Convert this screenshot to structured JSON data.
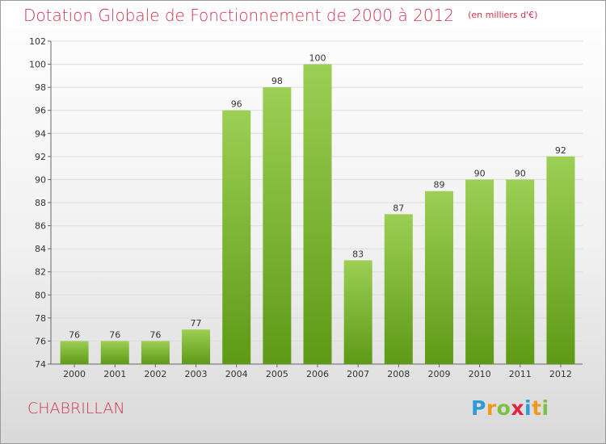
{
  "title": "Dotation Globale de Fonctionnement de 2000 à 2012",
  "unit_label": "(en milliers d'€)",
  "commune": "CHABRILLAN",
  "logo": {
    "letters": [
      "P",
      "r",
      "o",
      "x",
      "i",
      "t",
      "i"
    ],
    "colors": [
      "#2f9ad8",
      "#f09a1c",
      "#7cc242",
      "#e2233f",
      "#2f9ad8",
      "#f09a1c",
      "#7cc242"
    ]
  },
  "colors": {
    "bar_top": "#9ccf54",
    "bar_bottom": "#5e9a16",
    "title": "#d0344e"
  },
  "chart_data": {
    "type": "bar",
    "categories": [
      "2000",
      "2001",
      "2002",
      "2003",
      "2004",
      "2005",
      "2006",
      "2007",
      "2008",
      "2009",
      "2010",
      "2011",
      "2012"
    ],
    "values": [
      76,
      76,
      76,
      77,
      96,
      98,
      100,
      83,
      87,
      89,
      90,
      90,
      92
    ],
    "yticks": [
      74,
      76,
      78,
      80,
      82,
      84,
      86,
      88,
      90,
      92,
      94,
      96,
      98,
      100,
      102
    ],
    "ylim": [
      74,
      102
    ],
    "grid": true,
    "data_labels": true
  }
}
